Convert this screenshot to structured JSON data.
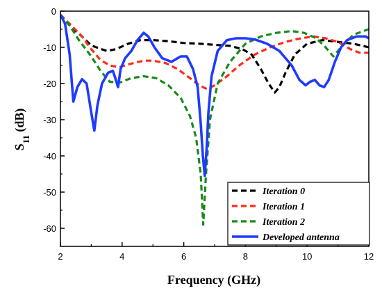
{
  "chart_data": {
    "type": "line",
    "xlabel": "Frequency (GHz)",
    "ylabel_main": "S",
    "ylabel_sub": "11",
    "ylabel_unit": " (dB)",
    "xlim": [
      2,
      12
    ],
    "ylim": [
      -65,
      0
    ],
    "x_ticks": [
      2,
      4,
      6,
      8,
      10,
      12
    ],
    "y_ticks": [
      0,
      -10,
      -20,
      -30,
      -40,
      -50,
      -60
    ],
    "grid": false,
    "legend_position": "bottom-right",
    "series": [
      {
        "name": "Iteration 0",
        "color": "#000000",
        "dash": "dashed",
        "points": [
          [
            2,
            -1
          ],
          [
            2.3,
            -4
          ],
          [
            2.7,
            -7
          ],
          [
            3,
            -9.5
          ],
          [
            3.5,
            -11
          ],
          [
            3.8,
            -10.5
          ],
          [
            4.2,
            -9
          ],
          [
            4.6,
            -8
          ],
          [
            5,
            -8
          ],
          [
            5.5,
            -8.3
          ],
          [
            6,
            -8.8
          ],
          [
            6.5,
            -9
          ],
          [
            7,
            -9.3
          ],
          [
            7.5,
            -9.6
          ],
          [
            7.9,
            -10.5
          ],
          [
            8.2,
            -12
          ],
          [
            8.5,
            -16
          ],
          [
            8.75,
            -20
          ],
          [
            8.95,
            -22.5
          ],
          [
            9.1,
            -21
          ],
          [
            9.3,
            -17
          ],
          [
            9.6,
            -12
          ],
          [
            10,
            -9
          ],
          [
            10.5,
            -8
          ],
          [
            11,
            -8.5
          ],
          [
            11.5,
            -9
          ],
          [
            12,
            -10
          ]
        ]
      },
      {
        "name": "Iteration 1",
        "color": "#ff2a1a",
        "dash": "dashed",
        "points": [
          [
            2,
            -1
          ],
          [
            2.3,
            -3.5
          ],
          [
            2.7,
            -7
          ],
          [
            3,
            -10.5
          ],
          [
            3.3,
            -13.5
          ],
          [
            3.6,
            -15
          ],
          [
            3.9,
            -15.5
          ],
          [
            4.3,
            -14.5
          ],
          [
            4.7,
            -13.7
          ],
          [
            5,
            -13.7
          ],
          [
            5.4,
            -14.3
          ],
          [
            5.8,
            -16
          ],
          [
            6.2,
            -18.5
          ],
          [
            6.5,
            -20.5
          ],
          [
            6.75,
            -21.5
          ],
          [
            7,
            -20.5
          ],
          [
            7.4,
            -18
          ],
          [
            7.8,
            -15
          ],
          [
            8.3,
            -12
          ],
          [
            8.8,
            -10
          ],
          [
            9.3,
            -8.5
          ],
          [
            9.8,
            -7.5
          ],
          [
            10.2,
            -7
          ],
          [
            10.6,
            -7.5
          ],
          [
            11,
            -8.5
          ],
          [
            11.4,
            -10.5
          ],
          [
            11.7,
            -11.5
          ],
          [
            12,
            -11.5
          ]
        ]
      },
      {
        "name": "Iteration 2",
        "color": "#1a8a1a",
        "dash": "dashed",
        "points": [
          [
            2,
            -1
          ],
          [
            2.3,
            -4
          ],
          [
            2.6,
            -8
          ],
          [
            3,
            -12.5
          ],
          [
            3.3,
            -16.5
          ],
          [
            3.6,
            -19.5
          ],
          [
            3.9,
            -19.8
          ],
          [
            4.3,
            -18.5
          ],
          [
            4.7,
            -18
          ],
          [
            5.1,
            -18.5
          ],
          [
            5.5,
            -20.5
          ],
          [
            5.9,
            -24
          ],
          [
            6.2,
            -29
          ],
          [
            6.4,
            -35
          ],
          [
            6.55,
            -45
          ],
          [
            6.63,
            -59
          ],
          [
            6.72,
            -45
          ],
          [
            6.85,
            -30
          ],
          [
            7.1,
            -20
          ],
          [
            7.5,
            -14
          ],
          [
            8,
            -9
          ],
          [
            8.5,
            -7
          ],
          [
            9,
            -6
          ],
          [
            9.5,
            -5.5
          ],
          [
            9.9,
            -6
          ],
          [
            10.3,
            -7.5
          ],
          [
            10.6,
            -10
          ],
          [
            10.85,
            -12.5
          ],
          [
            11.1,
            -10
          ],
          [
            11.5,
            -6.5
          ],
          [
            12,
            -5
          ]
        ]
      },
      {
        "name": "Developed antenna",
        "color": "#1f3bff",
        "dash": "solid",
        "points": [
          [
            2,
            -1
          ],
          [
            2.15,
            -3.5
          ],
          [
            2.3,
            -12
          ],
          [
            2.42,
            -25
          ],
          [
            2.55,
            -21
          ],
          [
            2.7,
            -18.8
          ],
          [
            2.85,
            -20
          ],
          [
            3,
            -28
          ],
          [
            3.1,
            -33
          ],
          [
            3.2,
            -26
          ],
          [
            3.35,
            -20
          ],
          [
            3.55,
            -17
          ],
          [
            3.7,
            -16.5
          ],
          [
            3.78,
            -18.5
          ],
          [
            3.87,
            -21
          ],
          [
            3.95,
            -16
          ],
          [
            4.1,
            -13
          ],
          [
            4.3,
            -11
          ],
          [
            4.5,
            -8
          ],
          [
            4.7,
            -6
          ],
          [
            4.85,
            -7
          ],
          [
            5.05,
            -10
          ],
          [
            5.3,
            -13
          ],
          [
            5.6,
            -14
          ],
          [
            5.9,
            -12.5
          ],
          [
            6.1,
            -12.5
          ],
          [
            6.3,
            -16
          ],
          [
            6.45,
            -21
          ],
          [
            6.55,
            -31
          ],
          [
            6.62,
            -40
          ],
          [
            6.68,
            -45.5
          ],
          [
            6.74,
            -38
          ],
          [
            6.8,
            -28
          ],
          [
            6.9,
            -18
          ],
          [
            7.1,
            -11
          ],
          [
            7.4,
            -8
          ],
          [
            7.7,
            -7.5
          ],
          [
            8,
            -7.5
          ],
          [
            8.3,
            -7.8
          ],
          [
            8.7,
            -9
          ],
          [
            9.1,
            -11
          ],
          [
            9.5,
            -15
          ],
          [
            9.75,
            -19
          ],
          [
            9.95,
            -20.5
          ],
          [
            10.1,
            -19.5
          ],
          [
            10.25,
            -19
          ],
          [
            10.4,
            -20.5
          ],
          [
            10.55,
            -21
          ],
          [
            10.7,
            -19
          ],
          [
            10.9,
            -14
          ],
          [
            11.1,
            -10
          ],
          [
            11.3,
            -8
          ],
          [
            11.6,
            -7
          ],
          [
            11.9,
            -7
          ],
          [
            12,
            -7.5
          ]
        ]
      }
    ]
  }
}
